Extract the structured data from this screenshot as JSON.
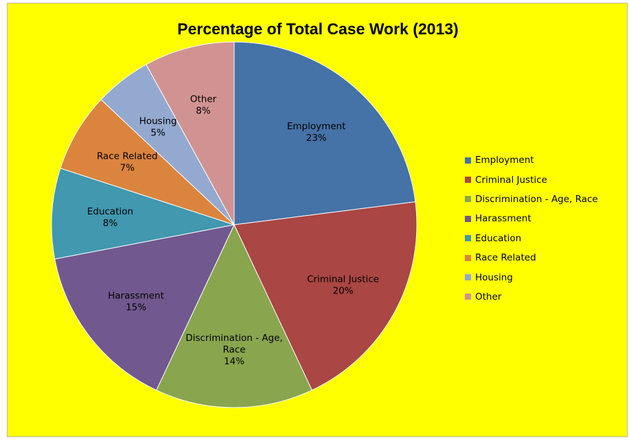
{
  "chart_data": {
    "type": "pie",
    "title": "Percentage of Total Case Work (2013)",
    "legend_position": "right",
    "slices": [
      {
        "label": "Employment",
        "value": 23,
        "value_label": "23%",
        "display_lines": [
          "Employment",
          "23%"
        ],
        "color": "#4572A7"
      },
      {
        "label": "Criminal Justice",
        "value": 20,
        "value_label": "20%",
        "display_lines": [
          "Criminal Justice",
          "20%"
        ],
        "color": "#AA4643"
      },
      {
        "label": "Discrimination - Age, Race",
        "value": 14,
        "value_label": "14%",
        "display_lines": [
          "Discrimination - Age,",
          "Race",
          "14%"
        ],
        "color": "#89A54E"
      },
      {
        "label": "Harassment",
        "value": 15,
        "value_label": "15%",
        "display_lines": [
          "Harassment",
          "15%"
        ],
        "color": "#71588F"
      },
      {
        "label": "Education",
        "value": 8,
        "value_label": "8%",
        "display_lines": [
          "Education",
          "8%"
        ],
        "color": "#4198AF"
      },
      {
        "label": "Race Related",
        "value": 7,
        "value_label": "7%",
        "display_lines": [
          "Race Related",
          "7%"
        ],
        "color": "#DB843D"
      },
      {
        "label": "Housing",
        "value": 5,
        "value_label": "5%",
        "display_lines": [
          "Housing",
          "5%"
        ],
        "color": "#93A9CF"
      },
      {
        "label": "Other",
        "value": 8,
        "value_label": "8%",
        "display_lines": [
          "Other",
          "8%"
        ],
        "color": "#D19392"
      }
    ]
  },
  "colors": {
    "background": "#FFFF00"
  }
}
